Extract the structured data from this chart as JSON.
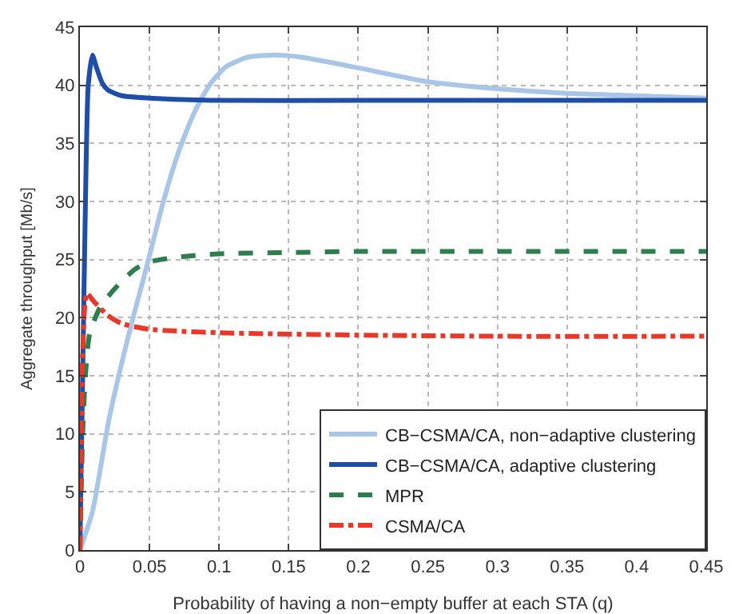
{
  "chart_data": {
    "type": "line",
    "xlabel": "Probability of having a non−empty buffer at each STA (q)",
    "ylabel": "Aggregate throughput [Mb/s]",
    "xlim": [
      0,
      0.45
    ],
    "xticks": [
      0,
      0.05,
      0.1,
      0.15,
      0.2,
      0.25,
      0.3,
      0.35,
      0.4,
      0.45
    ],
    "ylim": [
      0,
      45
    ],
    "yticks": [
      0,
      5,
      10,
      15,
      20,
      25,
      30,
      35,
      40,
      45
    ],
    "grid": true,
    "legend": "bottom right",
    "series": [
      {
        "name": "CB−CSMA/CA, non−adaptive clustering",
        "color": "#a9c6e8",
        "line_style": "solid",
        "x": [
          0,
          0.009,
          0.021,
          0.035,
          0.048,
          0.06,
          0.071,
          0.082,
          0.093,
          0.105,
          0.12,
          0.138,
          0.16,
          0.2,
          0.25,
          0.3,
          0.35,
          0.4,
          0.45
        ],
        "values": [
          0,
          3.3,
          11.3,
          18.5,
          24.4,
          30,
          34.3,
          37.6,
          40,
          41.6,
          42.4,
          42.6,
          42.4,
          41.5,
          40.3,
          39.7,
          39.3,
          39.1,
          38.9
        ]
      },
      {
        "name": "CB−CSMA/CA, adaptive clustering",
        "color": "#1f4ea8",
        "line_style": "solid",
        "x": [
          0,
          0.002,
          0.004,
          0.006,
          0.009,
          0.012,
          0.016,
          0.02,
          0.03,
          0.05,
          0.1,
          0.2,
          0.3,
          0.45
        ],
        "values": [
          0,
          15,
          30,
          40,
          42.6,
          41.5,
          40.2,
          39.6,
          39.1,
          38.9,
          38.7,
          38.7,
          38.7,
          38.7
        ]
      },
      {
        "name": "MPR",
        "color": "#2e7d4f",
        "line_style": "dashed",
        "x": [
          0,
          0.002,
          0.004,
          0.007,
          0.015,
          0.029,
          0.04,
          0.05,
          0.07,
          0.1,
          0.15,
          0.2,
          0.3,
          0.45
        ],
        "values": [
          0,
          10,
          15,
          18.6,
          21,
          23,
          24.2,
          24.8,
          25.2,
          25.5,
          25.6,
          25.7,
          25.7,
          25.7
        ]
      },
      {
        "name": "CSMA/CA",
        "color": "#e8382a",
        "line_style": "dashdot",
        "x": [
          0,
          0.002,
          0.005,
          0.01,
          0.02,
          0.03,
          0.05,
          0.1,
          0.2,
          0.3,
          0.45
        ],
        "values": [
          0,
          17,
          22.1,
          21.4,
          20.2,
          19.5,
          19,
          18.7,
          18.5,
          18.4,
          18.4
        ]
      }
    ]
  }
}
